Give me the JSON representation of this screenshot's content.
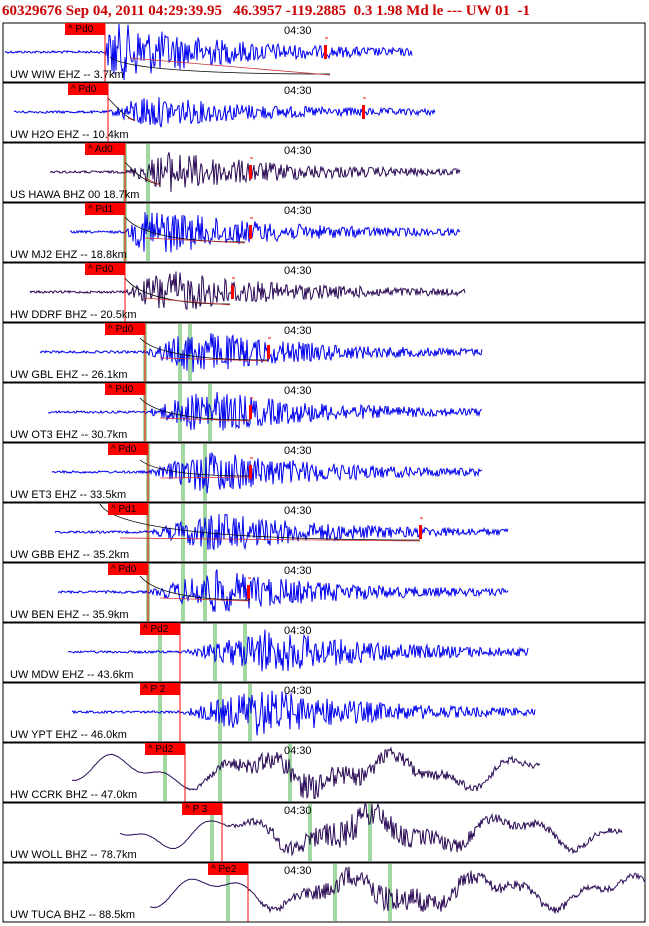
{
  "header": {
    "text": "60329676 Sep 04, 2011 04:29:39.95   46.3957 -119.2885  0.3 1.98 Md le --- UW 01  -1"
  },
  "time_label": "04:30",
  "colors": {
    "header": "#cc0000",
    "pick": "#ff0000",
    "trace_blue": "#0000ee",
    "trace_dark": "#2a0a55",
    "green_marker": "#90d090",
    "coda_line": "#cc3333"
  },
  "traces": [
    {
      "label": "UW WIW EHZ -- 3.7km",
      "phase": "Pd0",
      "color": "blue"
    },
    {
      "label": "UW H2O EHZ -- 10.4km",
      "phase": "Pd0",
      "color": "blue"
    },
    {
      "label": "US HAWA BHZ 00 18.7km",
      "phase": "Ad0",
      "color": "dark"
    },
    {
      "label": "UW MJ2 EHZ -- 18.8km",
      "phase": "Pd1",
      "color": "blue"
    },
    {
      "label": "HW DDRF BHZ -- 20.5km",
      "phase": "Pd0",
      "color": "dark"
    },
    {
      "label": "UW GBL EHZ -- 26.1km",
      "phase": "Pd0",
      "color": "blue"
    },
    {
      "label": "UW OT3 EHZ -- 30.7km",
      "phase": "Pd0",
      "color": "blue"
    },
    {
      "label": "UW ET3 EHZ -- 33.5km",
      "phase": "Pd0",
      "color": "blue"
    },
    {
      "label": "UW GBB EHZ -- 35.2km",
      "phase": "Pd1",
      "color": "blue"
    },
    {
      "label": "UW BEN EHZ -- 35.9km",
      "phase": "Pd0",
      "color": "blue"
    },
    {
      "label": "UW MDW EHZ -- 43.6km",
      "phase": "Pd2",
      "color": "blue"
    },
    {
      "label": "UW YPT EHZ -- 46.0km",
      "phase": "P 2",
      "color": "blue"
    },
    {
      "label": "HW CCRK BHZ -- 47.0km",
      "phase": "Pd2",
      "color": "dark"
    },
    {
      "label": "UW WOLL BHZ -- 78.7km",
      "phase": "P 3",
      "color": "dark"
    },
    {
      "label": "UW TUCA BHZ -- 88.5km",
      "phase": "Pe2",
      "color": "dark"
    }
  ]
}
